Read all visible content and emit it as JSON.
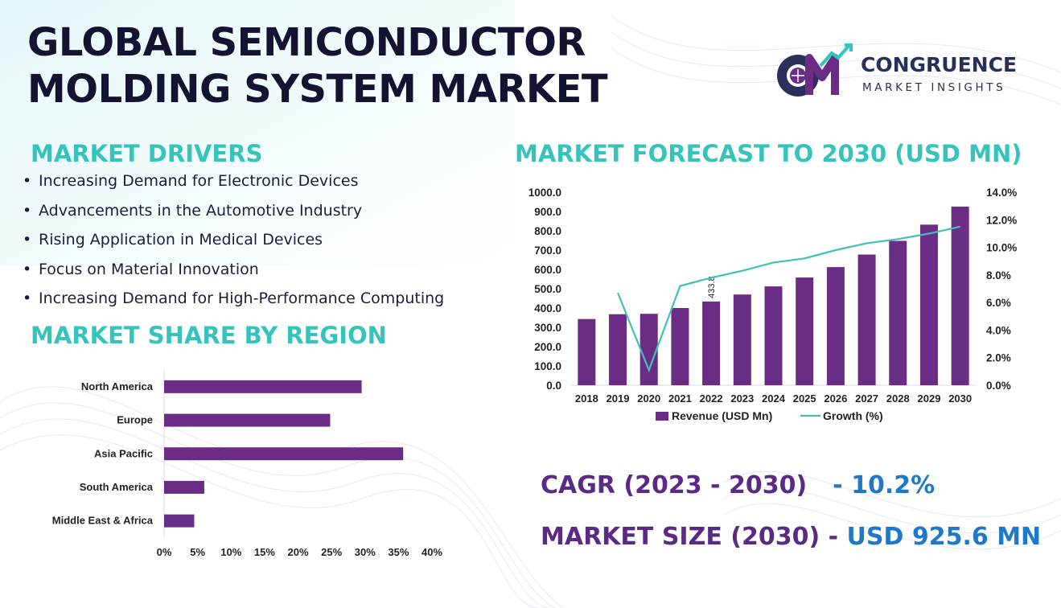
{
  "title": {
    "line1": "GLOBAL SEMICONDUCTOR",
    "line2": "MOLDING SYSTEM MARKET"
  },
  "logo": {
    "name": "CONGRUENCE",
    "tagline": "MARKET INSIGHTS"
  },
  "drivers": {
    "heading": "MARKET DRIVERS",
    "items": [
      "Increasing Demand for Electronic Devices",
      "Advancements in the Automotive Industry",
      "Rising Application in Medical Devices",
      "Focus on Material Innovation",
      "Increasing Demand for High-Performance Computing"
    ]
  },
  "region": {
    "heading": "MARKET SHARE BY REGION"
  },
  "forecast": {
    "heading": "MARKET FORECAST TO 2030 (USD MN)"
  },
  "kpis": {
    "cagr_label": "CAGR (2023 - 2030)",
    "cagr_value": "- 10.2%",
    "size_label": "MARKET SIZE (2030) -",
    "size_value": "USD 925.6 MN"
  },
  "colors": {
    "bar": "#6a2c84",
    "line": "#3fc1bb",
    "heading": "#35c4bc",
    "title": "#141432",
    "kpi_label": "#5b2a86",
    "kpi_value": "#1f78c8"
  },
  "chart_data": [
    {
      "type": "bar",
      "orientation": "horizontal",
      "categories": [
        "North America",
        "Europe",
        "Asia Pacific",
        "South America",
        "Middle East & Africa"
      ],
      "values": [
        29.5,
        24.8,
        35.7,
        6.0,
        4.5
      ],
      "xlim": [
        0,
        40
      ],
      "xticks": [
        "0%",
        "5%",
        "10%",
        "15%",
        "20%",
        "25%",
        "30%",
        "35%",
        "40%"
      ],
      "grid": false
    },
    {
      "type": "bar",
      "categories": [
        "2018",
        "2019",
        "2020",
        "2021",
        "2022",
        "2023",
        "2024",
        "2025",
        "2026",
        "2027",
        "2028",
        "2029",
        "2030"
      ],
      "series": [
        {
          "name": "Revenue (USD Mn)",
          "type": "bar",
          "axis": "left",
          "values": [
            343,
            368,
            370,
            400,
            433.8,
            470,
            512,
            558,
            612,
            677,
            748,
            832,
            925.6
          ]
        },
        {
          "name": "Growth (%)",
          "type": "line",
          "axis": "right",
          "values": [
            null,
            6.7,
            1.1,
            7.2,
            7.8,
            8.3,
            8.9,
            9.2,
            9.8,
            10.3,
            10.6,
            11.0,
            11.5
          ]
        }
      ],
      "data_labels": [
        {
          "category": "2022",
          "text": "433.8"
        }
      ],
      "ylim": [
        0,
        1000
      ],
      "yticks": [
        "0.0",
        "100.0",
        "200.0",
        "300.0",
        "400.0",
        "500.0",
        "600.0",
        "700.0",
        "800.0",
        "900.0",
        "1000.0"
      ],
      "y2lim": [
        0,
        14
      ],
      "y2ticks": [
        "0.0%",
        "2.0%",
        "4.0%",
        "6.0%",
        "8.0%",
        "10.0%",
        "12.0%",
        "14.0%"
      ],
      "legend": "bottom",
      "grid": false
    }
  ]
}
